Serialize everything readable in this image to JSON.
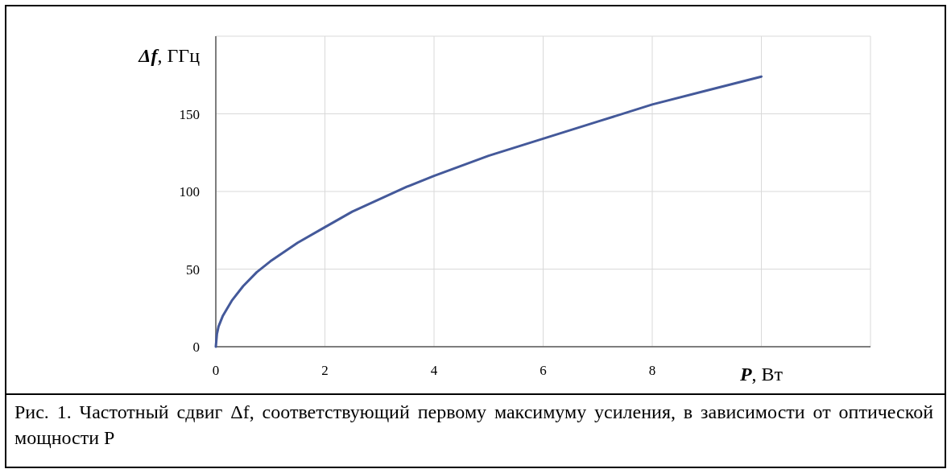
{
  "chart_data": {
    "type": "line",
    "xlabel": "P, Вт",
    "ylabel": "Δf, ГГц",
    "annotations": [
      "Рис. 1. Частотный сдвиг Δf, соответствующий первому максимуму усиления, в зависимости от оптической мощности P"
    ],
    "x": [
      0,
      0.02,
      0.05,
      0.13,
      0.3,
      0.5,
      0.75,
      1,
      1.5,
      2,
      2.5,
      3,
      3.5,
      4,
      5,
      6,
      7,
      8,
      9,
      10
    ],
    "series": [
      {
        "color": "#44599a",
        "values": [
          0,
          8,
          13,
          20,
          30,
          39,
          48,
          55,
          67,
          77,
          87,
          95,
          103,
          110,
          123,
          134,
          145,
          156,
          165,
          174
        ]
      }
    ],
    "xlim": [
      0,
      12
    ],
    "xticks": [
      0,
      2,
      4,
      6,
      8,
      {
        "value": 10,
        "label": null
      },
      {
        "value": 12,
        "label": null
      }
    ],
    "ylim": [
      0,
      200
    ],
    "yticks": [
      0,
      50,
      100,
      150,
      {
        "value": 200,
        "label": null
      }
    ],
    "grid": true,
    "marker": "none",
    "line_style": "solid"
  }
}
